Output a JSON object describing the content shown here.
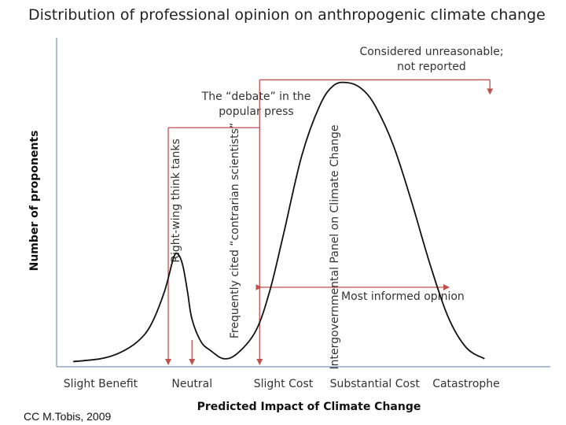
{
  "chart_data": {
    "type": "line",
    "title": "Distribution of professional opinion on anthropogenic climate change",
    "xlabel": "Predicted Impact of Climate Change",
    "ylabel": "Number of proponents",
    "categories": [
      "Slight Benefit",
      "Neutral",
      "Slight Cost",
      "Substantial Cost",
      "Catastrophe"
    ],
    "xlim": [
      0,
      4
    ],
    "ylim": [
      0,
      1
    ],
    "grid": false,
    "legend": "none",
    "series": [
      {
        "name": "Distribution of professional opinion",
        "x": [
          -0.3,
          0.0,
          0.2,
          0.4,
          0.55,
          0.7,
          0.8,
          0.85,
          0.9,
          0.95,
          1.0,
          1.1,
          1.2,
          1.35,
          1.5,
          1.7,
          1.85,
          2.0,
          2.2,
          2.4,
          2.55,
          2.7,
          2.85,
          3.0,
          3.2,
          3.4,
          3.6,
          3.8,
          4.0,
          4.2
        ],
        "y": [
          0.01,
          0.02,
          0.04,
          0.08,
          0.14,
          0.26,
          0.38,
          0.39,
          0.35,
          0.26,
          0.16,
          0.08,
          0.05,
          0.02,
          0.04,
          0.12,
          0.26,
          0.46,
          0.74,
          0.92,
          0.99,
          1.0,
          0.98,
          0.92,
          0.78,
          0.58,
          0.36,
          0.17,
          0.06,
          0.02
        ]
      }
    ],
    "annotations": [
      {
        "name": "debate-popular-press",
        "lines": [
          "The “debate” in the",
          "popular press"
        ],
        "x_start": 0.74,
        "x_end": 1.74,
        "level": 0.84
      },
      {
        "name": "considered-unreasonable",
        "lines": [
          "Considered unreasonable;",
          "not reported"
        ],
        "x_start": 1.74,
        "x_end": 4.26,
        "level": 1.01
      },
      {
        "name": "most-informed-opinion",
        "lines": [
          "Most informed opinion"
        ],
        "x_start": 1.74,
        "x_end": 3.81,
        "level": 0.3
      },
      {
        "name": "right-wing-think-tanks",
        "lines": [
          "Right-wing  think tanks"
        ],
        "x": 0.74,
        "vertical": true
      },
      {
        "name": "contrarian-scientists",
        "lines": [
          "Frequently cited “contrarian scientists”"
        ],
        "x": 1.0,
        "vertical": true
      },
      {
        "name": "ipcc",
        "lines": [
          "Intergovernmental Panel on Climate Change"
        ],
        "x": 1.74,
        "vertical": true
      }
    ]
  },
  "credit": "CC M.Tobis, 2009",
  "colors": {
    "curve": "#111111",
    "annotation": "#c0504d",
    "axis": "#8ea9c9"
  }
}
